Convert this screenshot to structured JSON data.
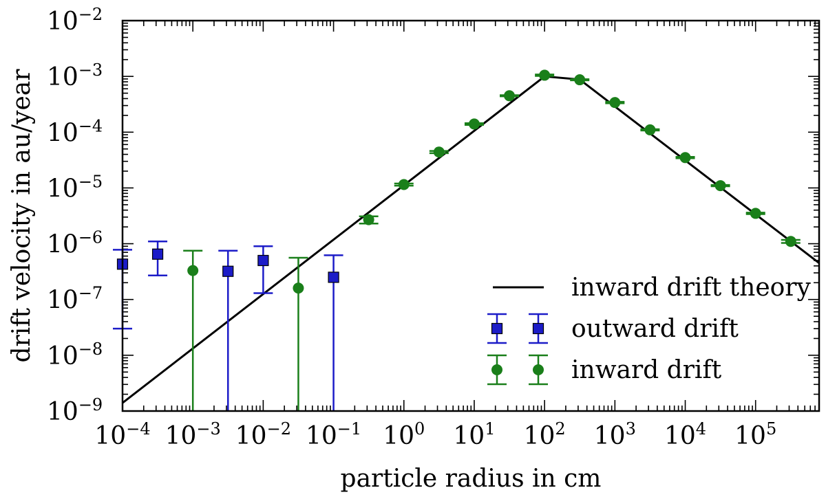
{
  "chart_data": {
    "type": "scatter",
    "title": "",
    "xlabel": "particle radius in cm",
    "ylabel": "drift velocity in au/year",
    "xscale": "log",
    "yscale": "log",
    "xlim": [
      0.0001,
      800000
    ],
    "ylim": [
      1e-09,
      0.01
    ],
    "x_tick_exponents": [
      -4,
      -3,
      -2,
      -1,
      0,
      1,
      2,
      3,
      4,
      5
    ],
    "y_tick_exponents": [
      -9,
      -8,
      -7,
      -6,
      -5,
      -4,
      -3,
      -2
    ],
    "tick_base": "10",
    "legend_position": "lower-right",
    "colors": {
      "theory": "#000000",
      "outward": "#1c1cc8",
      "inward": "#1a7f1a"
    },
    "series": [
      {
        "name": "inward drift theory",
        "kind": "line",
        "x": [
          0.0001,
          100,
          316,
          800000
        ],
        "y": [
          1.4e-09,
          0.001,
          0.00088,
          4.5e-07
        ]
      },
      {
        "name": "outward drift",
        "kind": "errorbar",
        "marker": "square",
        "x": [
          0.0001,
          0.000316,
          0.00316,
          0.01,
          0.1
        ],
        "y": [
          4.3e-07,
          6.5e-07,
          3.2e-07,
          5e-07,
          2.5e-07
        ],
        "err_low": [
          3e-08,
          2.7e-07,
          1e-09,
          1.3e-07,
          1e-09
        ],
        "err_high": [
          7.8e-07,
          1.1e-06,
          7.5e-07,
          9e-07,
          6.2e-07
        ]
      },
      {
        "name": "inward drift",
        "kind": "errorbar",
        "marker": "circle",
        "x": [
          0.001,
          0.0316,
          0.316,
          1,
          3.16,
          10,
          31.6,
          100,
          316,
          1000,
          3160,
          10000,
          31600,
          100000,
          316000
        ],
        "y": [
          3.3e-07,
          1.6e-07,
          2.7e-06,
          1.15e-05,
          4.4e-05,
          0.00014,
          0.00045,
          0.00105,
          0.00087,
          0.00034,
          0.00011,
          3.5e-05,
          1.1e-05,
          3.5e-06,
          1.1e-06
        ],
        "err_low": [
          1e-09,
          1e-09,
          2.3e-06,
          1.1e-05,
          4.2e-05,
          0.000135,
          0.00044,
          0.00102,
          0.00085,
          0.00033,
          0.000107,
          3.4e-05,
          1.07e-05,
          3.4e-06,
          1.03e-06
        ],
        "err_high": [
          7.5e-07,
          5.6e-07,
          3.1e-06,
          1.2e-05,
          4.6e-05,
          0.000145,
          0.00046,
          0.00108,
          0.00089,
          0.00035,
          0.000113,
          3.6e-05,
          1.13e-05,
          3.6e-06,
          1.17e-06
        ]
      }
    ]
  }
}
